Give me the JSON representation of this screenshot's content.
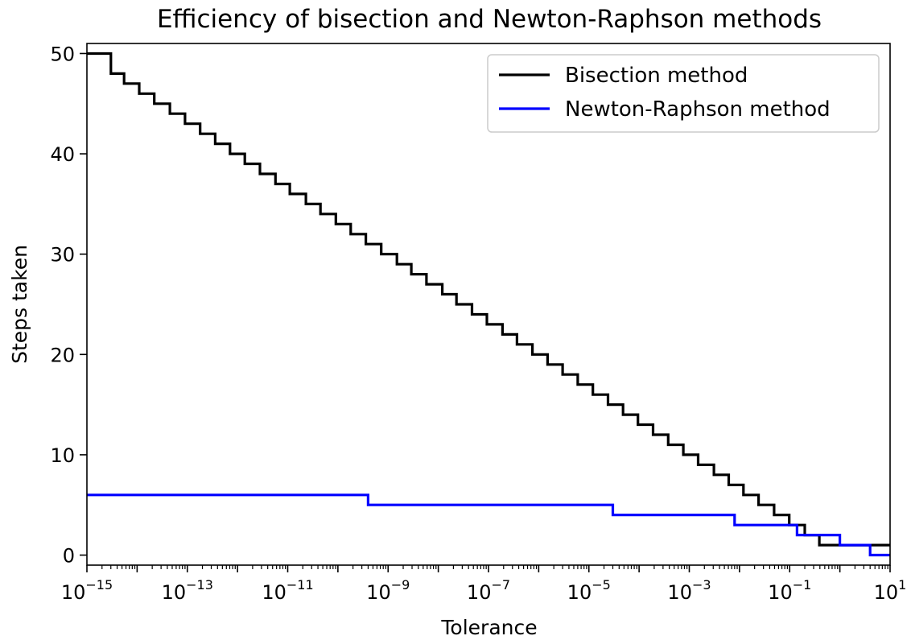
{
  "chart_data": {
    "type": "line",
    "step": "post",
    "title": "Efficiency of bisection and Newton-Raphson methods",
    "xlabel": "Tolerance",
    "ylabel": "Steps taken",
    "xscale": "log",
    "xlim": [
      1e-15,
      10
    ],
    "ylim": [
      -1,
      51
    ],
    "x_ticks": [
      {
        "base": "10",
        "exp": "−15",
        "value": 1e-15
      },
      {
        "base": "10",
        "exp": "−13",
        "value": 1e-13
      },
      {
        "base": "10",
        "exp": "−11",
        "value": 1e-11
      },
      {
        "base": "10",
        "exp": "−9",
        "value": 1e-09
      },
      {
        "base": "10",
        "exp": "−7",
        "value": 1e-07
      },
      {
        "base": "10",
        "exp": "−5",
        "value": 1e-05
      },
      {
        "base": "10",
        "exp": "−3",
        "value": 0.001
      },
      {
        "base": "10",
        "exp": "−1",
        "value": 0.1
      },
      {
        "base": "10",
        "exp": "1",
        "value": 10
      }
    ],
    "y_ticks": [
      0,
      10,
      20,
      30,
      40,
      50
    ],
    "grid": false,
    "legend": "top-right",
    "series": [
      {
        "name": "Bisection method",
        "color": "#000000",
        "x": [
          1e-15,
          3e-15,
          5.5e-15,
          1.1e-14,
          2.2e-14,
          4.5e-14,
          9e-14,
          1.8e-13,
          3.6e-13,
          7.1e-13,
          1.4e-12,
          2.8e-12,
          5.7e-12,
          1.1e-11,
          2.3e-11,
          4.5e-11,
          9.1e-11,
          1.8e-10,
          3.6e-10,
          7.3e-10,
          1.5e-09,
          2.9e-09,
          5.8e-09,
          1.2e-08,
          2.3e-08,
          4.7e-08,
          9.3e-08,
          1.9e-07,
          3.7e-07,
          7.5e-07,
          1.5e-06,
          3e-06,
          6e-06,
          1.2e-05,
          2.4e-05,
          4.8e-05,
          9.5e-05,
          0.00019,
          0.00038,
          0.00076,
          0.0015,
          0.0031,
          0.0061,
          0.012,
          0.024,
          0.049,
          0.098,
          0.2,
          0.39,
          0.78,
          1.6,
          10
        ],
        "values": [
          50,
          48,
          47,
          46,
          45,
          44,
          43,
          42,
          41,
          40,
          39,
          38,
          37,
          36,
          35,
          34,
          33,
          32,
          31,
          30,
          29,
          28,
          27,
          26,
          25,
          24,
          23,
          22,
          21,
          20,
          19,
          18,
          17,
          16,
          15,
          14,
          13,
          12,
          11,
          10,
          9,
          8,
          7,
          6,
          5,
          4,
          3,
          2,
          1,
          1,
          1,
          1
        ]
      },
      {
        "name": "Newton-Raphson method",
        "color": "#0000ff",
        "x": [
          1e-15,
          4e-10,
          3e-05,
          0.008,
          0.14,
          1,
          4,
          10
        ],
        "values": [
          6,
          5,
          4,
          3,
          2,
          1,
          0,
          0
        ]
      }
    ]
  }
}
